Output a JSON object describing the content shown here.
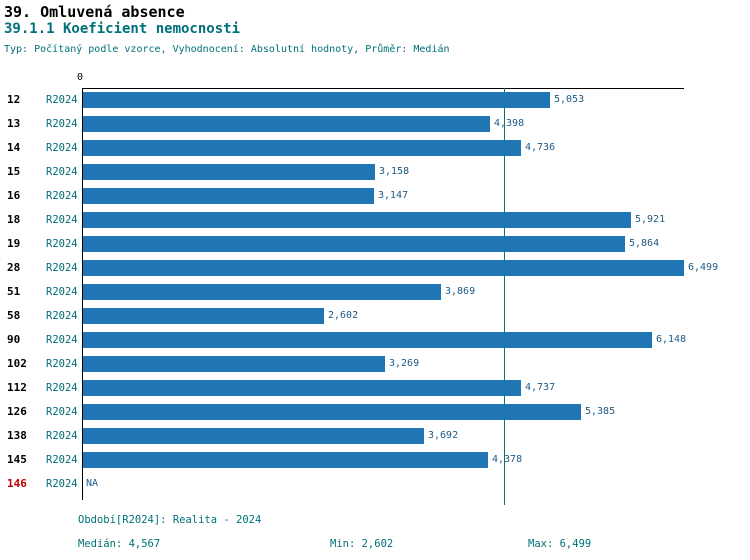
{
  "header": {
    "title": "39. Omluvená absence",
    "subtitle": "39.1.1 Koeficient nemocnosti",
    "meta": "Typ: Počítaný podle vzorce, Vyhodnocení: Absolutní hodnoty, Průměr: Medián"
  },
  "axis": {
    "zero_label": "0"
  },
  "chart_data": {
    "type": "bar",
    "orientation": "horizontal",
    "title": "39.1.1 Koeficient nemocnosti",
    "series_name": "R2024",
    "xlim": [
      0,
      6499
    ],
    "median": 4567,
    "min": 2602,
    "max": 6499,
    "grid": false,
    "rows": [
      {
        "label": "12",
        "series": "R2024",
        "value": 5053,
        "value_label": "5,053",
        "highlight": false
      },
      {
        "label": "13",
        "series": "R2024",
        "value": 4398,
        "value_label": "4,398",
        "highlight": false
      },
      {
        "label": "14",
        "series": "R2024",
        "value": 4736,
        "value_label": "4,736",
        "highlight": false
      },
      {
        "label": "15",
        "series": "R2024",
        "value": 3158,
        "value_label": "3,158",
        "highlight": false
      },
      {
        "label": "16",
        "series": "R2024",
        "value": 3147,
        "value_label": "3,147",
        "highlight": false
      },
      {
        "label": "18",
        "series": "R2024",
        "value": 5921,
        "value_label": "5,921",
        "highlight": false
      },
      {
        "label": "19",
        "series": "R2024",
        "value": 5864,
        "value_label": "5,864",
        "highlight": false
      },
      {
        "label": "28",
        "series": "R2024",
        "value": 6499,
        "value_label": "6,499",
        "highlight": false
      },
      {
        "label": "51",
        "series": "R2024",
        "value": 3869,
        "value_label": "3,869",
        "highlight": false
      },
      {
        "label": "58",
        "series": "R2024",
        "value": 2602,
        "value_label": "2,602",
        "highlight": false
      },
      {
        "label": "90",
        "series": "R2024",
        "value": 6148,
        "value_label": "6,148",
        "highlight": false
      },
      {
        "label": "102",
        "series": "R2024",
        "value": 3269,
        "value_label": "3,269",
        "highlight": false
      },
      {
        "label": "112",
        "series": "R2024",
        "value": 4737,
        "value_label": "4,737",
        "highlight": false
      },
      {
        "label": "126",
        "series": "R2024",
        "value": 5385,
        "value_label": "5,385",
        "highlight": false
      },
      {
        "label": "138",
        "series": "R2024",
        "value": 3692,
        "value_label": "3,692",
        "highlight": false
      },
      {
        "label": "145",
        "series": "R2024",
        "value": 4378,
        "value_label": "4,378",
        "highlight": false
      },
      {
        "label": "146",
        "series": "R2024",
        "value": null,
        "value_label": "NA",
        "highlight": true
      }
    ]
  },
  "footer": {
    "period": "Období[R2024]: Realita - 2024",
    "median": "Medián: 4,567",
    "min": "Min: 2,602",
    "max": "Max: 6,499"
  },
  "colors": {
    "bar": "#2076b4",
    "teal_text": "#00707a",
    "value_text": "#1d5a86",
    "highlight_text": "#c00000",
    "median_line": "#1a6b6b"
  }
}
